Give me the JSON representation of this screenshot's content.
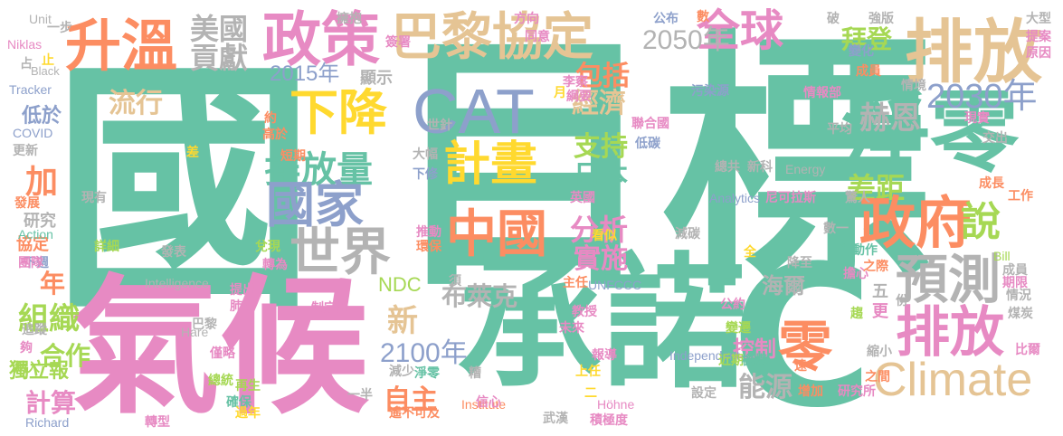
{
  "palette": {
    "green": "#66c2a5",
    "orange": "#fc8d62",
    "blue": "#8da0cb",
    "pink": "#e78ac3",
    "lime": "#a6d854",
    "yellow": "#ffd92f",
    "tan": "#e5c494",
    "gray": "#b3b3b3"
  },
  "words": [
    {
      "text": "國",
      "color": "green"
    },
    {
      "text": "目標",
      "color": "green"
    },
    {
      "text": "氣候",
      "color": "pink"
    },
    {
      "text": "承諾",
      "color": "green"
    },
    {
      "text": "C",
      "color": "green"
    },
    {
      "text": "淨零",
      "color": "green"
    },
    {
      "text": "升溫",
      "color": "orange"
    },
    {
      "text": "政策",
      "color": "pink"
    },
    {
      "text": "巴黎協定",
      "color": "tan"
    },
    {
      "text": "排放",
      "color": "tan"
    },
    {
      "text": "全球",
      "color": "pink"
    },
    {
      "text": "美國",
      "color": "gray"
    },
    {
      "text": "貢獻",
      "color": "gray"
    },
    {
      "text": "2050年",
      "color": "gray"
    },
    {
      "text": "拜登",
      "color": "lime"
    },
    {
      "text": "2015年",
      "color": "blue"
    },
    {
      "text": "顯示",
      "color": "gray"
    },
    {
      "text": "下降",
      "color": "yellow"
    },
    {
      "text": "CAT",
      "color": "blue"
    },
    {
      "text": "包括",
      "color": "orange"
    },
    {
      "text": "赫恩",
      "color": "gray"
    },
    {
      "text": "2030年",
      "color": "blue"
    },
    {
      "text": "流行",
      "color": "tan"
    },
    {
      "text": "經濟",
      "color": "tan"
    },
    {
      "text": "計畫",
      "color": "yellow"
    },
    {
      "text": "支持",
      "color": "lime"
    },
    {
      "text": "排放量",
      "color": "green"
    },
    {
      "text": "國家",
      "color": "blue"
    },
    {
      "text": "中國",
      "color": "orange"
    },
    {
      "text": "日本",
      "color": "green"
    },
    {
      "text": "差距",
      "color": "lime"
    },
    {
      "text": "政府",
      "color": "orange"
    },
    {
      "text": "說",
      "color": "lime"
    },
    {
      "text": "世界",
      "color": "gray"
    },
    {
      "text": "分析",
      "color": "pink"
    },
    {
      "text": "實施",
      "color": "pink"
    },
    {
      "text": "預測",
      "color": "gray"
    },
    {
      "text": "排放",
      "color": "pink"
    },
    {
      "text": "零",
      "color": "orange"
    },
    {
      "text": "Climate",
      "color": "tan"
    },
    {
      "text": "新",
      "color": "tan"
    },
    {
      "text": "NDC",
      "color": "lime"
    },
    {
      "text": "2100年",
      "color": "blue"
    },
    {
      "text": "布萊克",
      "color": "gray"
    },
    {
      "text": "海爾",
      "color": "gray"
    },
    {
      "text": "組織",
      "color": "lime"
    },
    {
      "text": "合作",
      "color": "lime"
    },
    {
      "text": "計算",
      "color": "pink"
    },
    {
      "text": "自主",
      "color": "orange"
    },
    {
      "text": "能源",
      "color": "gray"
    },
    {
      "text": "控制",
      "color": "pink"
    },
    {
      "text": "加",
      "color": "orange"
    },
    {
      "text": "年",
      "color": "orange"
    },
    {
      "text": "獨立報",
      "color": "lime"
    },
    {
      "text": "低於",
      "color": "blue"
    },
    {
      "text": "研究",
      "color": "gray"
    },
    {
      "text": "協定",
      "color": "orange"
    },
    {
      "text": "一步",
      "color": "gray"
    },
    {
      "text": "Unit",
      "color": "gray"
    },
    {
      "text": "Niklas",
      "color": "pink"
    },
    {
      "text": "Black",
      "color": "gray"
    },
    {
      "text": "Tracker",
      "color": "blue"
    },
    {
      "text": "COVID",
      "color": "blue"
    },
    {
      "text": "Action",
      "color": "green"
    },
    {
      "text": "Energy",
      "color": "gray"
    },
    {
      "text": "Analytics",
      "color": "blue"
    },
    {
      "text": "尼可拉斯",
      "color": "pink"
    },
    {
      "text": "Intelligence",
      "color": "gray"
    },
    {
      "text": "UNFCCC",
      "color": "blue"
    },
    {
      "text": "Independent",
      "color": "blue"
    },
    {
      "text": "Höhne",
      "color": "pink"
    },
    {
      "text": "Institute",
      "color": "orange"
    },
    {
      "text": "Richard",
      "color": "blue"
    },
    {
      "text": "Hare",
      "color": "gray"
    },
    {
      "text": "Bill",
      "color": "lime"
    },
    {
      "text": "擁抱",
      "color": "gray"
    },
    {
      "text": "公布",
      "color": "blue"
    },
    {
      "text": "數",
      "color": "orange"
    },
    {
      "text": "破",
      "color": "gray"
    },
    {
      "text": "強版",
      "color": "gray"
    },
    {
      "text": "大型",
      "color": "gray"
    },
    {
      "text": "提案",
      "color": "pink"
    },
    {
      "text": "原因",
      "color": "pink"
    },
    {
      "text": "變化",
      "color": "blue"
    },
    {
      "text": "成員",
      "color": "orange"
    },
    {
      "text": "情報部",
      "color": "pink"
    },
    {
      "text": "情境",
      "color": "gray"
    },
    {
      "text": "現實",
      "color": "pink"
    },
    {
      "text": "平均",
      "color": "gray"
    },
    {
      "text": "交出",
      "color": "gray"
    },
    {
      "text": "成長",
      "color": "orange"
    },
    {
      "text": "工作",
      "color": "orange"
    },
    {
      "text": "污染源",
      "color": "blue"
    },
    {
      "text": "總共",
      "color": "gray"
    },
    {
      "text": "新科",
      "color": "gray"
    },
    {
      "text": "李察",
      "color": "pink"
    },
    {
      "text": "綱要",
      "color": "pink"
    },
    {
      "text": "聯合國",
      "color": "pink"
    },
    {
      "text": "低碳",
      "color": "blue"
    },
    {
      "text": "世針",
      "color": "gray"
    },
    {
      "text": "大幅",
      "color": "gray"
    },
    {
      "text": "下修",
      "color": "blue"
    },
    {
      "text": "英國",
      "color": "pink"
    },
    {
      "text": "推動",
      "color": "pink"
    },
    {
      "text": "環保",
      "color": "orange"
    },
    {
      "text": "看似",
      "color": "yellow"
    },
    {
      "text": "減碳",
      "color": "gray"
    },
    {
      "text": "發表",
      "color": "gray"
    },
    {
      "text": "兌現",
      "color": "lime"
    },
    {
      "text": "轉為",
      "color": "pink"
    },
    {
      "text": "提出",
      "color": "pink"
    },
    {
      "text": "肺炎",
      "color": "pink"
    },
    {
      "text": "制定出",
      "color": "pink"
    },
    {
      "text": "巴黎",
      "color": "gray"
    },
    {
      "text": "僅略",
      "color": "pink"
    },
    {
      "text": "總統",
      "color": "lime"
    },
    {
      "text": "再生",
      "color": "lime"
    },
    {
      "text": "確保",
      "color": "green"
    },
    {
      "text": "轉型",
      "color": "pink"
    },
    {
      "text": "過年",
      "color": "yellow"
    },
    {
      "text": "減少",
      "color": "gray"
    },
    {
      "text": "淨零",
      "color": "green"
    },
    {
      "text": "一半",
      "color": "gray"
    },
    {
      "text": "遙不可及",
      "color": "orange"
    },
    {
      "text": "信心",
      "color": "pink"
    },
    {
      "text": "武漢",
      "color": "gray"
    },
    {
      "text": "積極度",
      "color": "pink"
    },
    {
      "text": "上任",
      "color": "yellow"
    },
    {
      "text": "報導",
      "color": "pink"
    },
    {
      "text": "教授",
      "color": "pink"
    },
    {
      "text": "未來",
      "color": "pink"
    },
    {
      "text": "主任",
      "color": "orange"
    },
    {
      "text": "須",
      "color": "gray"
    },
    {
      "text": "設定",
      "color": "gray"
    },
    {
      "text": "近期",
      "color": "lime"
    },
    {
      "text": "機構",
      "color": "green"
    },
    {
      "text": "變遷",
      "color": "lime"
    },
    {
      "text": "公約",
      "color": "pink"
    },
    {
      "text": "降至",
      "color": "gray"
    },
    {
      "text": "全",
      "color": "yellow"
    },
    {
      "text": "數一",
      "color": "gray"
    },
    {
      "text": "行動作",
      "color": "green"
    },
    {
      "text": "期限",
      "color": "pink"
    },
    {
      "text": "成員",
      "color": "gray"
    },
    {
      "text": "情況",
      "color": "gray"
    },
    {
      "text": "煤炭",
      "color": "gray"
    },
    {
      "text": "比爾",
      "color": "pink"
    },
    {
      "text": "縮小",
      "color": "gray"
    },
    {
      "text": "遠",
      "color": "orange"
    },
    {
      "text": "增加",
      "color": "orange"
    },
    {
      "text": "研究所",
      "color": "pink"
    },
    {
      "text": "之間",
      "color": "orange"
    },
    {
      "text": "擔心",
      "color": "pink"
    },
    {
      "text": "之際",
      "color": "orange"
    },
    {
      "text": "五",
      "color": "gray"
    },
    {
      "text": "更",
      "color": "pink"
    },
    {
      "text": "高於",
      "color": "orange"
    },
    {
      "text": "短期",
      "color": "orange"
    },
    {
      "text": "約",
      "color": "orange"
    },
    {
      "text": "驚人",
      "color": "gray"
    },
    {
      "text": "方向",
      "color": "pink"
    },
    {
      "text": "同意",
      "color": "pink"
    },
    {
      "text": "簽署",
      "color": "pink"
    },
    {
      "text": "月",
      "color": "yellow"
    },
    {
      "text": "追蹤",
      "color": "gray"
    },
    {
      "text": "夠",
      "color": "pink"
    },
    {
      "text": "納入",
      "color": "lime"
    },
    {
      "text": "下週",
      "color": "blue"
    },
    {
      "text": "發展",
      "color": "orange"
    },
    {
      "text": "詳細",
      "color": "lime"
    },
    {
      "text": "現有",
      "color": "gray"
    },
    {
      "text": "團隊",
      "color": "pink"
    },
    {
      "text": "更新",
      "color": "gray"
    },
    {
      "text": "差",
      "color": "yellow"
    },
    {
      "text": "止",
      "color": "yellow"
    },
    {
      "text": "占",
      "color": "gray"
    },
    {
      "text": "二",
      "color": "yellow"
    },
    {
      "text": "趨",
      "color": "lime"
    },
    {
      "text": "糟",
      "color": "gray"
    },
    {
      "text": "份",
      "color": "gray"
    }
  ]
}
